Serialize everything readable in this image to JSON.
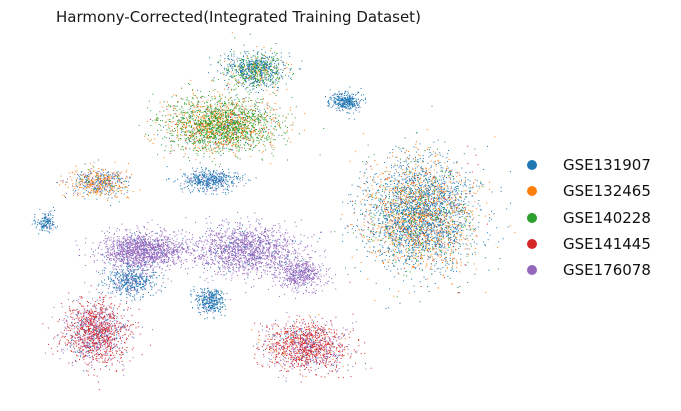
{
  "title": "Harmony-Corrected(Integrated Training Dataset)",
  "chart_data": {
    "type": "scatter",
    "title": "Harmony-Corrected(Integrated Training Dataset)",
    "xlabel": "",
    "ylabel": "",
    "axes_visible": false,
    "grid": false,
    "legend_position": "right",
    "series": [
      {
        "name": "GSE131907",
        "color": "#1f77b4"
      },
      {
        "name": "GSE132465",
        "color": "#ff7f0e"
      },
      {
        "name": "GSE140228",
        "color": "#2ca02c"
      },
      {
        "name": "GSE141445",
        "color": "#d62728"
      },
      {
        "name": "GSE176078",
        "color": "#9467bd"
      }
    ]
  }
}
